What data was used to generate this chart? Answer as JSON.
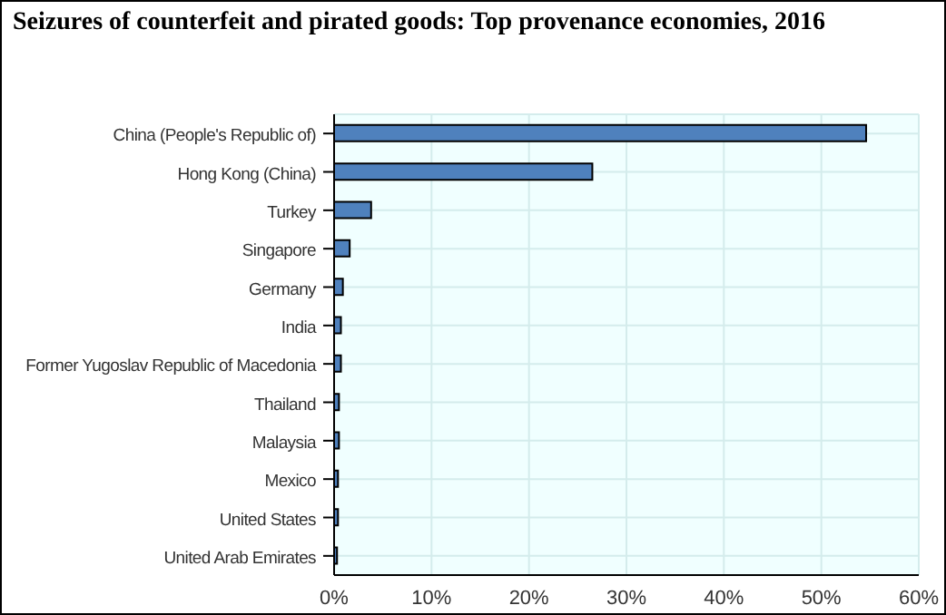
{
  "chart_data": {
    "type": "bar",
    "orientation": "horizontal",
    "title": "Seizures of counterfeit and pirated goods: Top provenance economies, 2016",
    "categories": [
      "China (People's Republic of)",
      "Hong Kong (China)",
      "Turkey",
      "Singapore",
      "Germany",
      "India",
      "Former Yugoslav Republic of Macedonia",
      "Thailand",
      "Malaysia",
      "Mexico",
      "United States",
      "United Arab Emirates"
    ],
    "values": [
      54.6,
      26.5,
      3.8,
      1.6,
      0.9,
      0.7,
      0.7,
      0.5,
      0.5,
      0.4,
      0.4,
      0.3
    ],
    "color": "#4f81bd",
    "xlim": [
      0,
      60
    ],
    "xticks": [
      {
        "value": 0,
        "label": "0%"
      },
      {
        "value": 10,
        "label": "10%"
      },
      {
        "value": 20,
        "label": "20%"
      },
      {
        "value": 30,
        "label": "30%"
      },
      {
        "value": 40,
        "label": "40%"
      },
      {
        "value": 50,
        "label": "50%"
      },
      {
        "value": 60,
        "label": "60%"
      }
    ],
    "grid": true
  }
}
